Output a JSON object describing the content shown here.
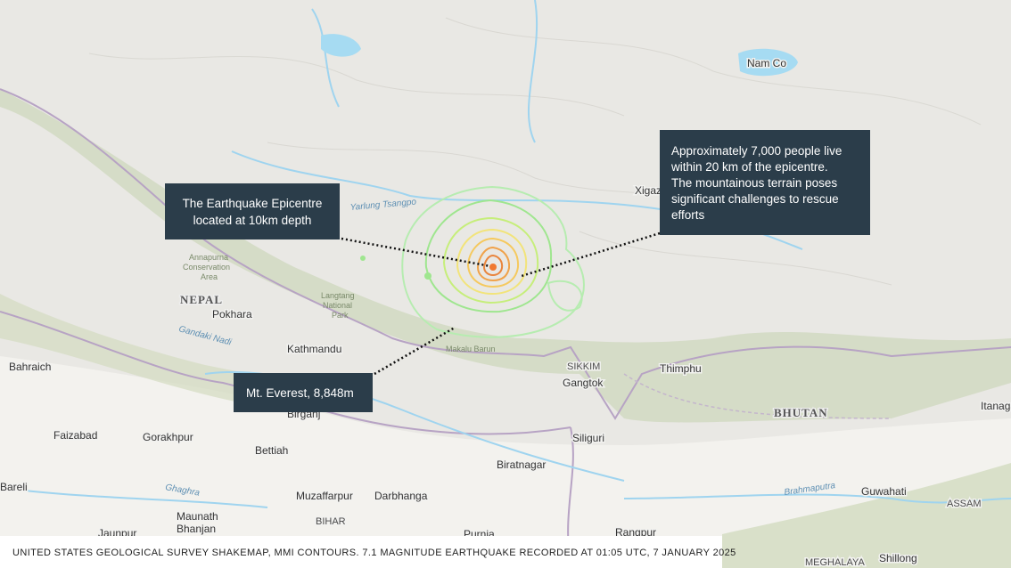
{
  "callouts": [
    {
      "lines": [
        "The Earthquake Epicentre",
        "located at 10km depth"
      ]
    },
    {
      "lines": [
        "Approximately 7,000 people live",
        "within 20 km of the epicentre.",
        "The mountainous terrain poses",
        "significant challenges to rescue",
        "efforts"
      ]
    },
    {
      "lines": [
        "Mt. Everest, 8,848m"
      ]
    }
  ],
  "caption": "UNITED STATES GEOLOGICAL SURVEY SHAKEMAP, MMI CONTOURS. 7.1 MAGNITUDE EARTHQUAKE RECORDED AT 01:05 UTC, 7 JANUARY 2025",
  "places": [
    "Nam Co",
    "Xigaze",
    "NEPAL",
    "Pokhara",
    "Kathmandu",
    "Thimphu",
    "BHUTAN",
    "SIKKIM",
    "Gangtok",
    "Bahraich",
    "Faizabad",
    "Gorakhpur",
    "Bettiah",
    "Birganj",
    "Biratnagar",
    "Siliguri",
    "Bareli",
    "Muzaffarpur",
    "Darbhanga",
    "BIHAR",
    "Maunath",
    "Bhanjan",
    "Jaunpur",
    "Guwahati",
    "Shillong",
    "ASSAM",
    "MEGHALAYA",
    "Itanagar",
    "Rangpur",
    "Purnia",
    "Brahmaputra",
    "Ghaghra",
    "Gandaki Nadi",
    "Yarlung Tsangpo",
    "Langtang",
    "National",
    "Park",
    "Makalu Barun",
    "Annapurna",
    "Conservation",
    "Area"
  ]
}
